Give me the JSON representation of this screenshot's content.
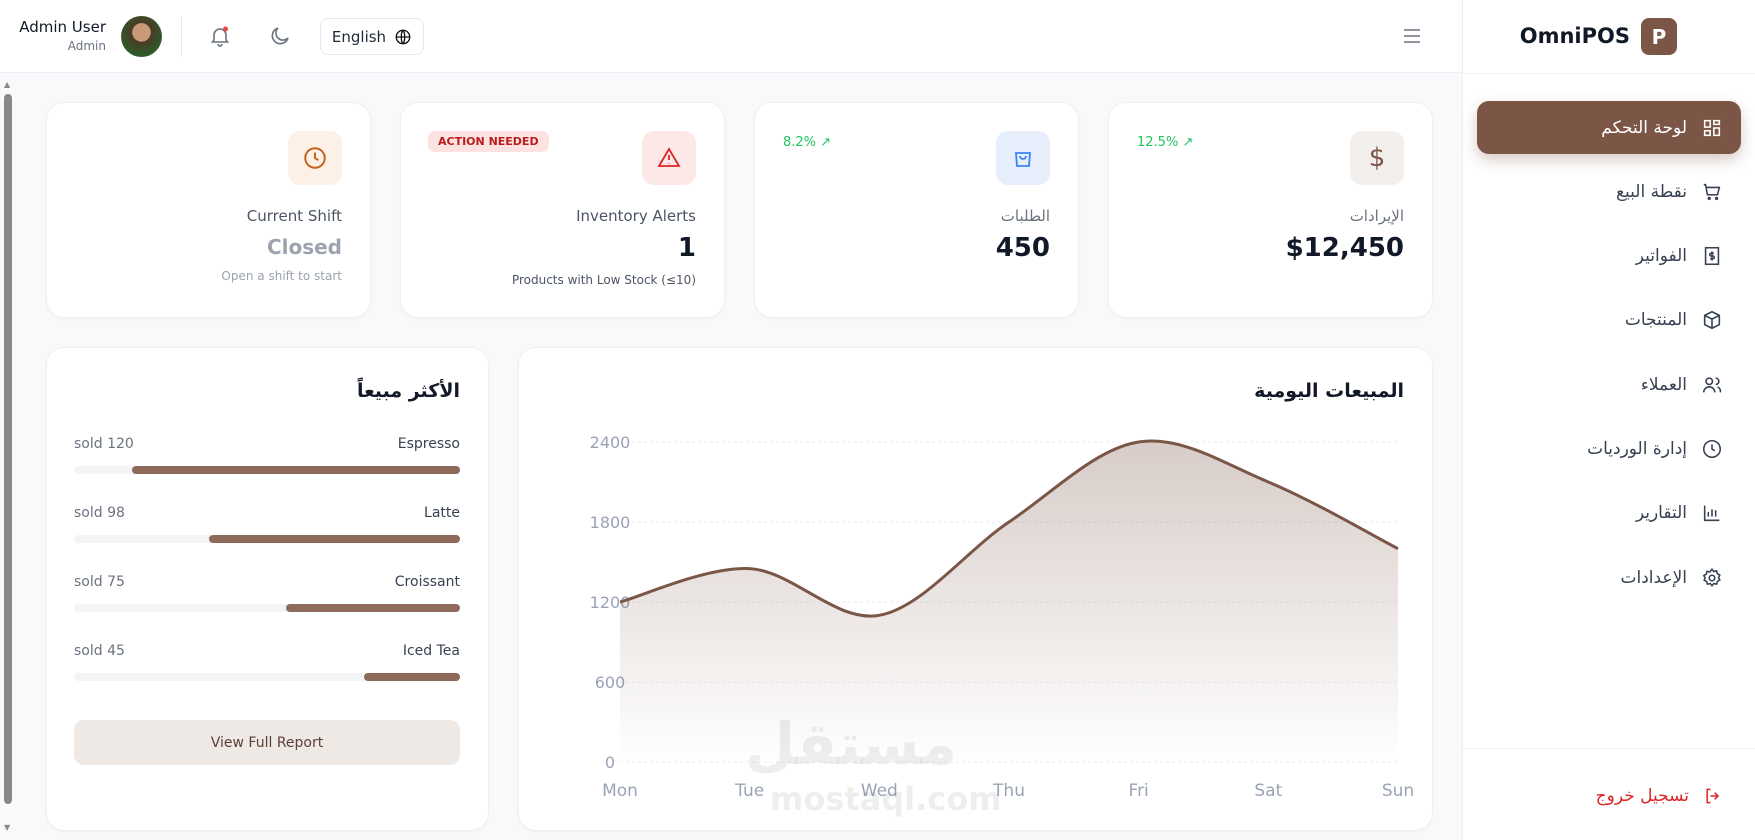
{
  "header": {
    "user_name": "Admin User",
    "user_role": "Admin",
    "language": "English"
  },
  "sidebar": {
    "brand": "OmniPOS",
    "brand_letter": "P",
    "items": [
      {
        "label": "لوحة التحكم",
        "icon": "dashboard-grid-icon",
        "active": true
      },
      {
        "label": "نقطة البيع",
        "icon": "cart-icon"
      },
      {
        "label": "الفواتير",
        "icon": "invoice-icon"
      },
      {
        "label": "المنتجات",
        "icon": "box-icon"
      },
      {
        "label": "العملاء",
        "icon": "users-icon"
      },
      {
        "label": "إدارة الورديات",
        "icon": "clock-icon"
      },
      {
        "label": "التقارير",
        "icon": "bar-chart-icon"
      },
      {
        "label": "الإعدادات",
        "icon": "gear-icon"
      }
    ],
    "logout": "تسجيل خروج"
  },
  "stats": {
    "revenue": {
      "label": "الإيرادات",
      "value": "$12,450",
      "trend": "12.5%"
    },
    "orders": {
      "label": "الطلبات",
      "value": "450",
      "trend": "8.2%"
    },
    "inventory": {
      "label": "Inventory Alerts",
      "value": "1",
      "sub": "Products with Low Stock (≤10)",
      "badge": "ACTION NEEDED"
    },
    "shift": {
      "label": "Current Shift",
      "value": "Closed",
      "sub": "Open a shift to start"
    }
  },
  "best_sellers": {
    "title": "الأكثر مبيعاً",
    "items": [
      {
        "name": "Espresso",
        "sold": "sold 120",
        "fill_pct": 85
      },
      {
        "name": "Latte",
        "sold": "sold 98",
        "fill_pct": 65
      },
      {
        "name": "Croissant",
        "sold": "sold 75",
        "fill_pct": 45
      },
      {
        "name": "Iced Tea",
        "sold": "sold 45",
        "fill_pct": 25
      }
    ],
    "button": "View Full Report"
  },
  "colors": {
    "accent": "#7b5647",
    "trend_up": "#22c55e",
    "alert": "#dc2626"
  },
  "watermark": {
    "arabic": "مستقل",
    "latin": "mostaql.com"
  },
  "chart_data": {
    "type": "area",
    "title": "المبيعات اليومية",
    "categories": [
      "Mon",
      "Tue",
      "Wed",
      "Thu",
      "Fri",
      "Sat",
      "Sun"
    ],
    "values": [
      1200,
      1450,
      1100,
      1800,
      2400,
      2100,
      1600
    ],
    "yticks": [
      "0",
      "600",
      "1200",
      "1800",
      "2400"
    ],
    "ylim": [
      0,
      2400
    ],
    "grid": true,
    "color": "#7b5647"
  }
}
